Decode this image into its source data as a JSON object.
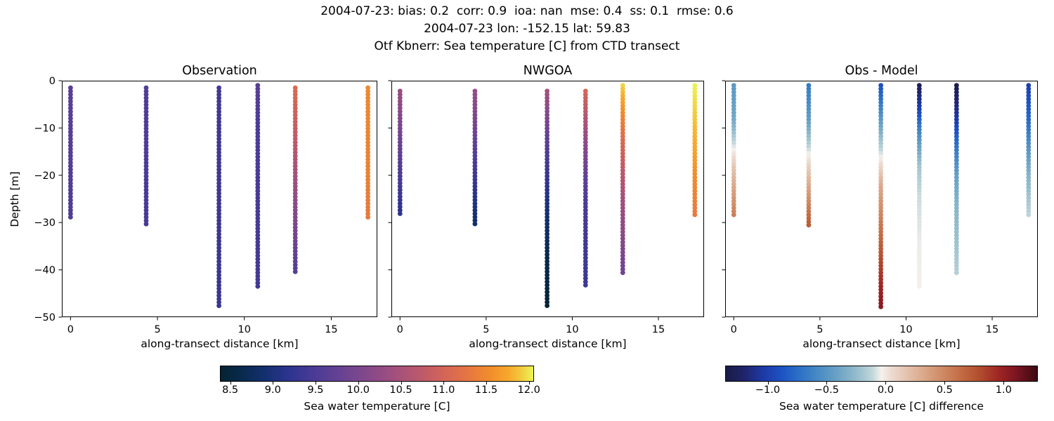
{
  "figure": {
    "title_line1": "2004-07-23: bias: 0.2  corr: 0.9  ioa: nan  mse: 0.4  ss: 0.1  rmse: 0.6",
    "title_line2": "2004-07-23 lon: -152.15 lat: 59.83",
    "title_line3": "Otf Kbnerr: Sea temperature [C] from CTD transect"
  },
  "chart_data": [
    {
      "type": "scatter",
      "title": "Observation",
      "xlabel": "along-transect distance [km]",
      "ylabel": "Depth [m]",
      "xlim": [
        -0.5,
        17.65
      ],
      "ylim": [
        -50,
        0
      ],
      "xticks": [
        0,
        5,
        10,
        15
      ],
      "xticklabels": [
        "0",
        "5",
        "10",
        "15"
      ],
      "yticks": [
        0,
        -10,
        -20,
        -30,
        -40,
        -50
      ],
      "yticklabels": [
        "0",
        "−10",
        "−20",
        "−30",
        "−40",
        "−50"
      ],
      "colormap": "thermal",
      "vmin": 8.38,
      "vmax": 12.06,
      "dot_spacing_m": 0.72,
      "profiles": [
        {
          "x_km": 0.0,
          "z": [
            -1.5,
            -28.5
          ],
          "anchors": [
            [
              -1.5,
              9.65
            ],
            [
              -28.5,
              9.55
            ]
          ]
        },
        {
          "x_km": 4.35,
          "z": [
            -1.5,
            -30.3
          ],
          "anchors": [
            [
              -1.5,
              9.55
            ],
            [
              -30.3,
              9.45
            ]
          ]
        },
        {
          "x_km": 8.54,
          "z": [
            -1.5,
            -47.5
          ],
          "anchors": [
            [
              -1.5,
              9.42
            ],
            [
              -47.5,
              9.32
            ]
          ]
        },
        {
          "x_km": 10.77,
          "z": [
            -1.0,
            -43.5
          ],
          "anchors": [
            [
              -1.0,
              9.62
            ],
            [
              -8,
              9.5
            ],
            [
              -43.5,
              9.38
            ]
          ]
        },
        {
          "x_km": 12.93,
          "z": [
            -1.5,
            -40.5
          ],
          "anchors": [
            [
              -1.5,
              11.1
            ],
            [
              -12,
              10.78
            ],
            [
              -22,
              10.38
            ],
            [
              -32,
              9.95
            ],
            [
              -40.5,
              9.6
            ]
          ]
        },
        {
          "x_km": 17.11,
          "z": [
            -1.5,
            -28.5
          ],
          "anchors": [
            [
              -1.5,
              11.5
            ],
            [
              -20,
              11.42
            ],
            [
              -28.5,
              11.32
            ]
          ]
        }
      ]
    },
    {
      "type": "scatter",
      "title": "NWGOA",
      "xlabel": "along-transect distance [km]",
      "ylabel": "Depth [m]",
      "xlim": [
        -0.5,
        17.65
      ],
      "ylim": [
        -50,
        0
      ],
      "xticks": [
        0,
        5,
        10,
        15
      ],
      "xticklabels": [
        "0",
        "5",
        "10",
        "15"
      ],
      "yticks": [
        0,
        -10,
        -20,
        -30,
        -40,
        -50
      ],
      "colormap": "thermal",
      "vmin": 8.38,
      "vmax": 12.06,
      "dot_spacing_m": 0.72,
      "profiles": [
        {
          "x_km": 0.0,
          "z": [
            -2.2,
            -28.0
          ],
          "anchors": [
            [
              -2.2,
              10.35
            ],
            [
              -10,
              10.0
            ],
            [
              -18,
              9.6
            ],
            [
              -24,
              9.35
            ],
            [
              -28,
              9.2
            ]
          ]
        },
        {
          "x_km": 4.35,
          "z": [
            -2.2,
            -30.3
          ],
          "anchors": [
            [
              -2.2,
              10.3
            ],
            [
              -10,
              9.9
            ],
            [
              -18,
              9.45
            ],
            [
              -25,
              9.1
            ],
            [
              -30.3,
              8.85
            ]
          ]
        },
        {
          "x_km": 8.54,
          "z": [
            -2.2,
            -47.5
          ],
          "anchors": [
            [
              -2.2,
              10.45
            ],
            [
              -8,
              10.05
            ],
            [
              -14,
              9.6
            ],
            [
              -20,
              9.3
            ],
            [
              -28,
              8.95
            ],
            [
              -38,
              8.62
            ],
            [
              -47.5,
              8.42
            ]
          ]
        },
        {
          "x_km": 10.77,
          "z": [
            -2.2,
            -43.5
          ],
          "anchors": [
            [
              -2.2,
              11.05
            ],
            [
              -8,
              10.6
            ],
            [
              -14,
              10.15
            ],
            [
              -20,
              9.75
            ],
            [
              -26,
              9.5
            ],
            [
              -34,
              9.4
            ],
            [
              -43.5,
              9.35
            ]
          ]
        },
        {
          "x_km": 12.93,
          "z": [
            -1.0,
            -40.5
          ],
          "anchors": [
            [
              -1.0,
              11.95
            ],
            [
              -6,
              11.6
            ],
            [
              -12,
              11.15
            ],
            [
              -18,
              10.8
            ],
            [
              -24,
              10.5
            ],
            [
              -32,
              10.2
            ],
            [
              -40.5,
              9.9
            ]
          ]
        },
        {
          "x_km": 17.11,
          "z": [
            -1.0,
            -28.0
          ],
          "anchors": [
            [
              -1.0,
              12.05
            ],
            [
              -8,
              11.9
            ],
            [
              -14,
              11.75
            ],
            [
              -20,
              11.55
            ],
            [
              -28,
              11.35
            ]
          ]
        }
      ]
    },
    {
      "type": "scatter",
      "title": "Obs - Model",
      "xlabel": "along-transect distance [km]",
      "ylabel": "Depth [m]",
      "xlim": [
        -0.5,
        17.65
      ],
      "ylim": [
        -50,
        0
      ],
      "xticks": [
        0,
        5,
        10,
        15
      ],
      "xticklabels": [
        "0",
        "5",
        "10",
        "15"
      ],
      "yticks": [
        0,
        -10,
        -20,
        -30,
        -40,
        -50
      ],
      "colormap": "balance",
      "vmin": -1.36,
      "vmax": 1.29,
      "dot_spacing_m": 0.72,
      "profiles": [
        {
          "x_km": 0.0,
          "z": [
            -1.0,
            -28.5
          ],
          "anchors": [
            [
              -1.0,
              -0.48
            ],
            [
              -8,
              -0.38
            ],
            [
              -13,
              -0.12
            ],
            [
              -18,
              0.15
            ],
            [
              -23,
              0.35
            ],
            [
              -28.5,
              0.54
            ]
          ]
        },
        {
          "x_km": 4.35,
          "z": [
            -1.0,
            -30.3
          ],
          "anchors": [
            [
              -1.0,
              -0.68
            ],
            [
              -8,
              -0.45
            ],
            [
              -14,
              -0.12
            ],
            [
              -20,
              0.2
            ],
            [
              -26,
              0.5
            ],
            [
              -30.3,
              0.72
            ]
          ]
        },
        {
          "x_km": 8.54,
          "z": [
            -1.0,
            -47.5
          ],
          "anchors": [
            [
              -1.0,
              -0.9
            ],
            [
              -6,
              -0.6
            ],
            [
              -12,
              -0.25
            ],
            [
              -16,
              -0.05
            ],
            [
              -22,
              0.3
            ],
            [
              -30,
              0.55
            ],
            [
              -38,
              0.8
            ],
            [
              -44,
              0.98
            ],
            [
              -47.5,
              1.05
            ]
          ]
        },
        {
          "x_km": 10.77,
          "z": [
            -1.0,
            -43.5
          ],
          "anchors": [
            [
              -1.0,
              -1.28
            ],
            [
              -6,
              -1.0
            ],
            [
              -10,
              -0.65
            ],
            [
              -14,
              -0.4
            ],
            [
              -18,
              -0.2
            ],
            [
              -24,
              -0.1
            ],
            [
              -34,
              -0.05
            ],
            [
              -43.5,
              -0.04
            ]
          ]
        },
        {
          "x_km": 12.93,
          "z": [
            -1.0,
            -40.5
          ],
          "anchors": [
            [
              -1.0,
              -1.32
            ],
            [
              -8,
              -1.05
            ],
            [
              -14,
              -0.7
            ],
            [
              -20,
              -0.42
            ],
            [
              -26,
              -0.3
            ],
            [
              -34,
              -0.22
            ],
            [
              -40.5,
              -0.15
            ]
          ]
        },
        {
          "x_km": 17.11,
          "z": [
            -1.0,
            -28.5
          ],
          "anchors": [
            [
              -1.0,
              -1.0
            ],
            [
              -8,
              -0.78
            ],
            [
              -14,
              -0.52
            ],
            [
              -20,
              -0.3
            ],
            [
              -28.5,
              -0.12
            ]
          ]
        }
      ]
    }
  ],
  "colorbars": [
    {
      "label": "Sea water temperature [C]",
      "colormap": "thermal",
      "vmin": 8.38,
      "vmax": 12.06,
      "ticks": [
        8.5,
        9.0,
        9.5,
        10.0,
        10.5,
        11.0,
        11.5,
        12.0
      ],
      "ticklabels": [
        "8.5",
        "9.0",
        "9.5",
        "10.0",
        "10.5",
        "11.0",
        "11.5",
        "12.0"
      ]
    },
    {
      "label": "Sea water temperature [C] difference",
      "colormap": "balance",
      "vmin": -1.36,
      "vmax": 1.29,
      "ticks": [
        -1.0,
        -0.5,
        0.0,
        0.5,
        1.0
      ],
      "ticklabels": [
        "−1.0",
        "−0.5",
        "0.0",
        "0.5",
        "1.0"
      ]
    }
  ],
  "colormaps": {
    "thermal": [
      [
        0.0,
        "#042333"
      ],
      [
        0.07,
        "#0a2a4e"
      ],
      [
        0.14,
        "#13306e"
      ],
      [
        0.22,
        "#2d3490"
      ],
      [
        0.3,
        "#4b3b96"
      ],
      [
        0.38,
        "#664293"
      ],
      [
        0.46,
        "#81488c"
      ],
      [
        0.54,
        "#9c4e80"
      ],
      [
        0.62,
        "#b65770"
      ],
      [
        0.7,
        "#cf625b"
      ],
      [
        0.78,
        "#e47344"
      ],
      [
        0.86,
        "#f18c2c"
      ],
      [
        0.92,
        "#f7a82c"
      ],
      [
        0.96,
        "#f2c93e"
      ],
      [
        1.0,
        "#ebf653"
      ]
    ],
    "balance": [
      [
        0.0,
        "#181c43"
      ],
      [
        0.06,
        "#20246b"
      ],
      [
        0.12,
        "#1d3aa5"
      ],
      [
        0.18,
        "#1d53c3"
      ],
      [
        0.24,
        "#2e72c6"
      ],
      [
        0.3,
        "#4a8cc4"
      ],
      [
        0.36,
        "#6ca3c5"
      ],
      [
        0.42,
        "#94bccc"
      ],
      [
        0.47,
        "#c0d6da"
      ],
      [
        0.5,
        "#f6f1ed"
      ],
      [
        0.53,
        "#ecdcd2"
      ],
      [
        0.58,
        "#e4c3ae"
      ],
      [
        0.64,
        "#d9a687"
      ],
      [
        0.7,
        "#cd8862"
      ],
      [
        0.76,
        "#c16a41"
      ],
      [
        0.82,
        "#b04a2d"
      ],
      [
        0.88,
        "#9d2423"
      ],
      [
        0.93,
        "#7d1623"
      ],
      [
        1.0,
        "#3c0911"
      ]
    ]
  }
}
